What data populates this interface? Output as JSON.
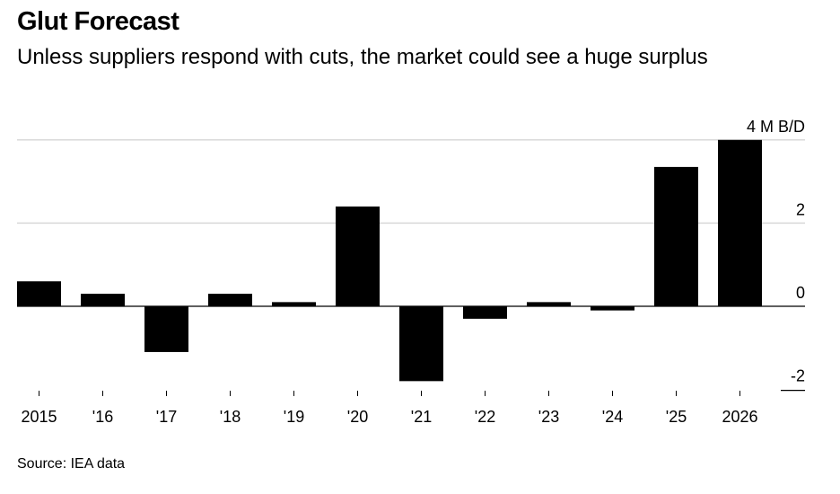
{
  "title": "Glut Forecast",
  "subtitle": "Unless suppliers respond with cuts, the market could see a huge surplus",
  "source": "Source: IEA data",
  "chart_data": {
    "type": "bar",
    "title": "Glut Forecast",
    "subtitle": "Unless suppliers respond with cuts, the market could see a huge surplus",
    "xlabel": "",
    "ylabel": "M B/D",
    "unit_label": "4 M B/D",
    "categories": [
      "2015",
      "'16",
      "'17",
      "'18",
      "'19",
      "'20",
      "'21",
      "'22",
      "'23",
      "'24",
      "'25",
      "2026"
    ],
    "values": [
      0.6,
      0.3,
      -1.1,
      0.3,
      0.1,
      2.4,
      -1.8,
      -0.3,
      0.1,
      -0.1,
      3.35,
      4.0
    ],
    "ylim": [
      -2,
      4
    ],
    "yticks": [
      {
        "value": 4,
        "label": "4 M B/D"
      },
      {
        "value": 2,
        "label": "2"
      },
      {
        "value": 0,
        "label": "0"
      },
      {
        "value": -2,
        "label": "-2"
      }
    ],
    "grid": true,
    "bar_color": "#000000",
    "grid_color": "#d9d9d9",
    "axis_side": "right",
    "source": "Source: IEA data"
  }
}
